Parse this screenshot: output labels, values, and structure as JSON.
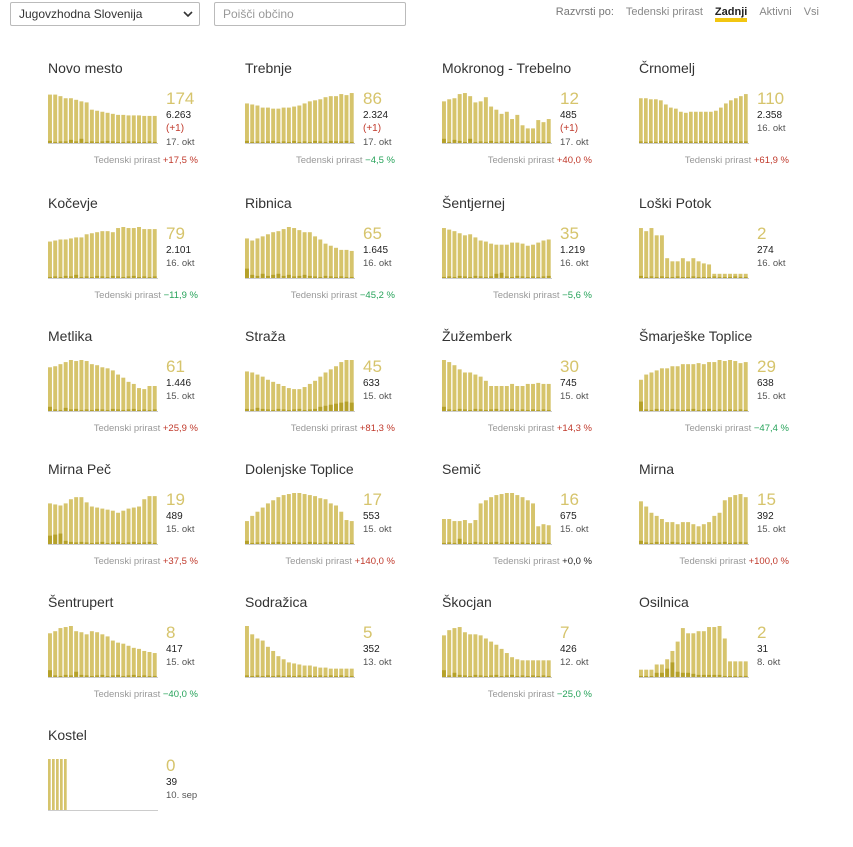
{
  "region_select": "Jugovzhodna Slovenija",
  "search_placeholder": "Poišči občino",
  "sort": {
    "label": "Razvrsti po:",
    "options": [
      "Tedenski prirast",
      "Zadnji",
      "Aktivni",
      "Vsi"
    ],
    "active": 1
  },
  "weekly_label": "Tedenski prirast",
  "colors": {
    "bar": "#d6c46c",
    "bar_dark": "#b5a12a",
    "accent": "#f2c611",
    "pos": "#c0392b",
    "neg": "#27a35a"
  },
  "municipalities": [
    {
      "name": "Novo mesto",
      "big": "174",
      "total": "6.263",
      "delta": "(+1)",
      "date": "17. okt",
      "weekly": "+17,5 %",
      "sign": "pos",
      "bars": [
        0.95,
        0.95,
        0.92,
        0.88,
        0.88,
        0.85,
        0.82,
        0.8,
        0.66,
        0.64,
        0.62,
        0.6,
        0.58,
        0.56,
        0.56,
        0.55,
        0.55,
        0.55,
        0.54,
        0.54,
        0.54
      ],
      "dark": [
        0.06,
        0.04,
        0.05,
        0.05,
        0.08,
        0.05,
        0.1,
        0.04,
        0.05,
        0.04,
        0.05,
        0.06,
        0.05,
        0.04,
        0.04,
        0.05,
        0.05,
        0.04,
        0.04,
        0.05,
        0.04
      ]
    },
    {
      "name": "Trebnje",
      "big": "86",
      "total": "2.324",
      "delta": "(+1)",
      "date": "17. okt",
      "weekly": "−4,5 %",
      "sign": "neg",
      "bars": [
        0.78,
        0.76,
        0.74,
        0.7,
        0.7,
        0.68,
        0.68,
        0.7,
        0.7,
        0.72,
        0.74,
        0.78,
        0.82,
        0.84,
        0.86,
        0.9,
        0.92,
        0.92,
        0.96,
        0.94,
        0.98
      ],
      "dark": [
        0.06,
        0.04,
        0.05,
        0.04,
        0.05,
        0.06,
        0.04,
        0.05,
        0.04,
        0.06,
        0.04,
        0.05,
        0.04,
        0.06,
        0.05,
        0.04,
        0.06,
        0.05,
        0.05,
        0.06,
        0.04
      ]
    },
    {
      "name": "Mokronog - Trebelno",
      "big": "12",
      "total": "485",
      "delta": "(+1)",
      "date": "17. okt",
      "weekly": "+40,0 %",
      "sign": "pos",
      "bars": [
        0.82,
        0.86,
        0.88,
        0.96,
        0.98,
        0.92,
        0.8,
        0.82,
        0.9,
        0.72,
        0.66,
        0.58,
        0.62,
        0.48,
        0.56,
        0.36,
        0.3,
        0.3,
        0.46,
        0.42,
        0.48
      ],
      "dark": [
        0.1,
        0.04,
        0.08,
        0.06,
        0.04,
        0.1,
        0.04,
        0.05,
        0.04,
        0.06,
        0.04,
        0.05,
        0.04,
        0.06,
        0.04,
        0.05,
        0.05,
        0.04,
        0.05,
        0.04,
        0.04
      ]
    },
    {
      "name": "Črnomelj",
      "big": "110",
      "total": "2.358",
      "delta": "",
      "date": "16. okt",
      "weekly": "+61,9 %",
      "sign": "pos",
      "bars": [
        0.88,
        0.88,
        0.86,
        0.86,
        0.84,
        0.76,
        0.7,
        0.68,
        0.62,
        0.6,
        0.62,
        0.62,
        0.62,
        0.62,
        0.62,
        0.64,
        0.7,
        0.78,
        0.84,
        0.88,
        0.92,
        0.96
      ],
      "dark": [
        0.05,
        0.04,
        0.05,
        0.04,
        0.06,
        0.05,
        0.04,
        0.05,
        0.06,
        0.04,
        0.05,
        0.04,
        0.06,
        0.05,
        0.04,
        0.05,
        0.04,
        0.05,
        0.06,
        0.04,
        0.05,
        0.05
      ]
    },
    {
      "name": "Kočevje",
      "big": "79",
      "total": "2.101",
      "delta": "",
      "date": "16. okt",
      "weekly": "−11,9 %",
      "sign": "neg",
      "bars": [
        0.72,
        0.74,
        0.76,
        0.76,
        0.78,
        0.8,
        0.8,
        0.86,
        0.88,
        0.9,
        0.92,
        0.92,
        0.9,
        0.98,
        1.0,
        0.98,
        0.98,
        1.0,
        0.96,
        0.96,
        0.96
      ],
      "dark": [
        0.04,
        0.05,
        0.04,
        0.06,
        0.05,
        0.08,
        0.04,
        0.05,
        0.04,
        0.06,
        0.05,
        0.04,
        0.06,
        0.05,
        0.04,
        0.05,
        0.06,
        0.04,
        0.05,
        0.04,
        0.05
      ]
    },
    {
      "name": "Ribnica",
      "big": "65",
      "total": "1.645",
      "delta": "",
      "date": "16. okt",
      "weekly": "−45,2 %",
      "sign": "neg",
      "bars": [
        0.78,
        0.74,
        0.78,
        0.82,
        0.86,
        0.9,
        0.92,
        0.96,
        1.0,
        0.98,
        0.94,
        0.9,
        0.9,
        0.82,
        0.76,
        0.68,
        0.64,
        0.6,
        0.56,
        0.56,
        0.54
      ],
      "dark": [
        0.2,
        0.08,
        0.06,
        0.1,
        0.06,
        0.08,
        0.1,
        0.06,
        0.08,
        0.05,
        0.06,
        0.08,
        0.06,
        0.05,
        0.04,
        0.06,
        0.05,
        0.04,
        0.05,
        0.04,
        0.04
      ]
    },
    {
      "name": "Šentjernej",
      "big": "35",
      "total": "1.219",
      "delta": "",
      "date": "16. okt",
      "weekly": "−5,6 %",
      "sign": "neg",
      "bars": [
        0.98,
        0.95,
        0.92,
        0.88,
        0.84,
        0.86,
        0.8,
        0.74,
        0.72,
        0.68,
        0.66,
        0.66,
        0.66,
        0.7,
        0.7,
        0.68,
        0.64,
        0.66,
        0.7,
        0.74,
        0.76
      ],
      "dark": [
        0.04,
        0.05,
        0.04,
        0.06,
        0.05,
        0.04,
        0.06,
        0.05,
        0.04,
        0.05,
        0.1,
        0.12,
        0.05,
        0.04,
        0.06,
        0.05,
        0.04,
        0.05,
        0.04,
        0.05,
        0.06
      ]
    },
    {
      "name": "Loški Potok",
      "big": "2",
      "total": "274",
      "delta": "",
      "date": "16. okt",
      "weekly": "",
      "sign": "zero",
      "bars": [
        0.98,
        0.92,
        0.98,
        0.84,
        0.84,
        0.4,
        0.34,
        0.34,
        0.4,
        0.34,
        0.4,
        0.34,
        0.3,
        0.28,
        0.1,
        0.1,
        0.1,
        0.1,
        0.1,
        0.1,
        0.1
      ],
      "dark": [
        0.06,
        0.04,
        0.05,
        0.04,
        0.05,
        0.04,
        0.04,
        0.05,
        0.04,
        0.04,
        0.05,
        0.04,
        0.04,
        0.04,
        0.05,
        0.04,
        0.04,
        0.04,
        0.05,
        0.04,
        0.04
      ]
    },
    {
      "name": "Metlika",
      "big": "61",
      "total": "1.446",
      "delta": "",
      "date": "15. okt",
      "weekly": "+25,9 %",
      "sign": "pos",
      "bars": [
        0.86,
        0.88,
        0.92,
        0.96,
        1.0,
        0.98,
        1.0,
        0.98,
        0.92,
        0.9,
        0.86,
        0.84,
        0.8,
        0.72,
        0.66,
        0.58,
        0.54,
        0.46,
        0.44,
        0.5,
        0.5
      ],
      "dark": [
        0.1,
        0.05,
        0.04,
        0.08,
        0.05,
        0.06,
        0.04,
        0.05,
        0.04,
        0.06,
        0.05,
        0.04,
        0.06,
        0.05,
        0.04,
        0.05,
        0.06,
        0.04,
        0.05,
        0.04,
        0.05
      ]
    },
    {
      "name": "Straža",
      "big": "45",
      "total": "633",
      "delta": "",
      "date": "15. okt",
      "weekly": "+81,3 %",
      "sign": "pos",
      "bars": [
        0.78,
        0.76,
        0.72,
        0.68,
        0.62,
        0.58,
        0.54,
        0.5,
        0.46,
        0.44,
        0.44,
        0.48,
        0.54,
        0.6,
        0.68,
        0.76,
        0.82,
        0.88,
        0.96,
        1.0,
        1.0
      ],
      "dark": [
        0.06,
        0.05,
        0.08,
        0.06,
        0.05,
        0.04,
        0.06,
        0.05,
        0.04,
        0.05,
        0.06,
        0.04,
        0.05,
        0.06,
        0.1,
        0.12,
        0.14,
        0.16,
        0.18,
        0.2,
        0.18
      ]
    },
    {
      "name": "Žužemberk",
      "big": "30",
      "total": "745",
      "delta": "",
      "date": "15. okt",
      "weekly": "+14,3 %",
      "sign": "pos",
      "bars": [
        1.0,
        0.96,
        0.9,
        0.82,
        0.76,
        0.76,
        0.72,
        0.68,
        0.6,
        0.5,
        0.5,
        0.5,
        0.5,
        0.54,
        0.5,
        0.5,
        0.54,
        0.54,
        0.56,
        0.54,
        0.54
      ],
      "dark": [
        0.1,
        0.05,
        0.04,
        0.06,
        0.05,
        0.04,
        0.06,
        0.05,
        0.04,
        0.05,
        0.06,
        0.04,
        0.05,
        0.06,
        0.04,
        0.05,
        0.04,
        0.05,
        0.04,
        0.05,
        0.04
      ]
    },
    {
      "name": "Šmarješke Toplice",
      "big": "29",
      "total": "638",
      "delta": "",
      "date": "15. okt",
      "weekly": "−47,4 %",
      "sign": "neg",
      "bars": [
        0.62,
        0.72,
        0.76,
        0.8,
        0.84,
        0.84,
        0.88,
        0.88,
        0.92,
        0.92,
        0.92,
        0.94,
        0.92,
        0.96,
        0.96,
        1.0,
        0.98,
        1.0,
        0.98,
        0.94,
        0.96
      ],
      "dark": [
        0.2,
        0.05,
        0.04,
        0.06,
        0.05,
        0.04,
        0.06,
        0.05,
        0.04,
        0.05,
        0.06,
        0.04,
        0.05,
        0.06,
        0.04,
        0.05,
        0.04,
        0.05,
        0.04,
        0.05,
        0.04
      ]
    },
    {
      "name": "Mirna Peč",
      "big": "19",
      "total": "489",
      "delta": "",
      "date": "15. okt",
      "weekly": "+37,5 %",
      "sign": "pos",
      "bars": [
        0.8,
        0.78,
        0.76,
        0.8,
        0.88,
        0.92,
        0.92,
        0.82,
        0.74,
        0.72,
        0.7,
        0.68,
        0.66,
        0.62,
        0.66,
        0.7,
        0.72,
        0.74,
        0.88,
        0.94,
        0.94
      ],
      "dark": [
        0.18,
        0.2,
        0.22,
        0.08,
        0.06,
        0.05,
        0.06,
        0.05,
        0.04,
        0.05,
        0.06,
        0.04,
        0.05,
        0.06,
        0.04,
        0.05,
        0.06,
        0.04,
        0.05,
        0.06,
        0.04
      ]
    },
    {
      "name": "Dolenjske Toplice",
      "big": "17",
      "total": "553",
      "delta": "",
      "date": "15. okt",
      "weekly": "+140,0 %",
      "sign": "pos",
      "bars": [
        0.46,
        0.56,
        0.64,
        0.72,
        0.8,
        0.86,
        0.92,
        0.96,
        0.98,
        1.0,
        1.0,
        0.98,
        0.96,
        0.94,
        0.9,
        0.88,
        0.8,
        0.76,
        0.64,
        0.48,
        0.46
      ],
      "dark": [
        0.08,
        0.04,
        0.05,
        0.06,
        0.04,
        0.05,
        0.06,
        0.05,
        0.04,
        0.06,
        0.05,
        0.04,
        0.06,
        0.05,
        0.04,
        0.05,
        0.06,
        0.04,
        0.05,
        0.04,
        0.04
      ]
    },
    {
      "name": "Semič",
      "big": "16",
      "total": "675",
      "delta": "",
      "date": "15. okt",
      "weekly": "+0,0 %",
      "sign": "zero",
      "bars": [
        0.5,
        0.5,
        0.46,
        0.46,
        0.48,
        0.42,
        0.48,
        0.8,
        0.86,
        0.92,
        0.96,
        0.98,
        1.0,
        1.0,
        0.96,
        0.92,
        0.86,
        0.8,
        0.36,
        0.4,
        0.38
      ],
      "dark": [
        0.04,
        0.05,
        0.04,
        0.12,
        0.05,
        0.04,
        0.06,
        0.05,
        0.04,
        0.05,
        0.06,
        0.04,
        0.05,
        0.06,
        0.04,
        0.05,
        0.04,
        0.05,
        0.04,
        0.05,
        0.04
      ]
    },
    {
      "name": "Mirna",
      "big": "15",
      "total": "392",
      "delta": "",
      "date": "15. okt",
      "weekly": "+100,0 %",
      "sign": "pos",
      "bars": [
        0.84,
        0.74,
        0.62,
        0.56,
        0.5,
        0.44,
        0.44,
        0.4,
        0.44,
        0.44,
        0.4,
        0.36,
        0.4,
        0.44,
        0.56,
        0.62,
        0.86,
        0.92,
        0.96,
        0.98,
        0.92
      ],
      "dark": [
        0.08,
        0.05,
        0.04,
        0.06,
        0.05,
        0.04,
        0.06,
        0.05,
        0.04,
        0.05,
        0.06,
        0.04,
        0.05,
        0.06,
        0.04,
        0.05,
        0.06,
        0.04,
        0.05,
        0.06,
        0.05
      ]
    },
    {
      "name": "Šentrupert",
      "big": "8",
      "total": "417",
      "delta": "",
      "date": "15. okt",
      "weekly": "−40,0 %",
      "sign": "neg",
      "bars": [
        0.86,
        0.9,
        0.96,
        0.98,
        1.0,
        0.9,
        0.88,
        0.84,
        0.9,
        0.88,
        0.84,
        0.8,
        0.72,
        0.68,
        0.66,
        0.62,
        0.58,
        0.56,
        0.52,
        0.5,
        0.48
      ],
      "dark": [
        0.15,
        0.05,
        0.04,
        0.06,
        0.05,
        0.12,
        0.06,
        0.05,
        0.04,
        0.05,
        0.06,
        0.04,
        0.05,
        0.06,
        0.04,
        0.05,
        0.06,
        0.04,
        0.05,
        0.04,
        0.04
      ]
    },
    {
      "name": "Sodražica",
      "big": "5",
      "total": "352",
      "delta": "",
      "date": "13. okt",
      "weekly": "",
      "sign": "zero",
      "bars": [
        1.0,
        0.84,
        0.76,
        0.72,
        0.6,
        0.52,
        0.42,
        0.36,
        0.3,
        0.28,
        0.26,
        0.24,
        0.24,
        0.22,
        0.2,
        0.2,
        0.18,
        0.18,
        0.18,
        0.18,
        0.18
      ],
      "dark": [
        0.05,
        0.04,
        0.05,
        0.04,
        0.05,
        0.04,
        0.05,
        0.04,
        0.05,
        0.04,
        0.05,
        0.04,
        0.05,
        0.04,
        0.05,
        0.04,
        0.05,
        0.04,
        0.05,
        0.04,
        0.04
      ]
    },
    {
      "name": "Škocjan",
      "big": "7",
      "total": "426",
      "delta": "",
      "date": "12. okt",
      "weekly": "−25,0 %",
      "sign": "neg",
      "bars": [
        0.82,
        0.92,
        0.96,
        0.98,
        0.88,
        0.84,
        0.84,
        0.82,
        0.76,
        0.7,
        0.64,
        0.56,
        0.48,
        0.4,
        0.36,
        0.34,
        0.34,
        0.34,
        0.34,
        0.34,
        0.34
      ],
      "dark": [
        0.15,
        0.05,
        0.1,
        0.06,
        0.05,
        0.04,
        0.06,
        0.05,
        0.04,
        0.05,
        0.06,
        0.04,
        0.05,
        0.06,
        0.04,
        0.05,
        0.04,
        0.05,
        0.04,
        0.05,
        0.04
      ]
    },
    {
      "name": "Osilnica",
      "big": "2",
      "total": "31",
      "delta": "",
      "date": "8. okt",
      "weekly": "",
      "sign": "zero",
      "bars": [
        0.16,
        0.16,
        0.16,
        0.26,
        0.26,
        0.36,
        0.52,
        0.7,
        0.96,
        0.86,
        0.86,
        0.9,
        0.9,
        0.98,
        0.98,
        1.0,
        0.76,
        0.32,
        0.32,
        0.32,
        0.32
      ],
      "dark": [
        0.04,
        0.04,
        0.04,
        0.1,
        0.1,
        0.18,
        0.3,
        0.12,
        0.1,
        0.1,
        0.08,
        0.06,
        0.06,
        0.06,
        0.06,
        0.06,
        0.04,
        0.04,
        0.04,
        0.04,
        0.04
      ]
    },
    {
      "name": "Kostel",
      "big": "0",
      "total": "39",
      "delta": "",
      "date": "10. sep",
      "weekly": "",
      "sign": "zero",
      "bars": [
        1.0,
        1.0,
        1.0,
        1.0,
        1.0
      ],
      "dark": [
        0,
        0,
        0,
        0,
        0
      ]
    }
  ]
}
